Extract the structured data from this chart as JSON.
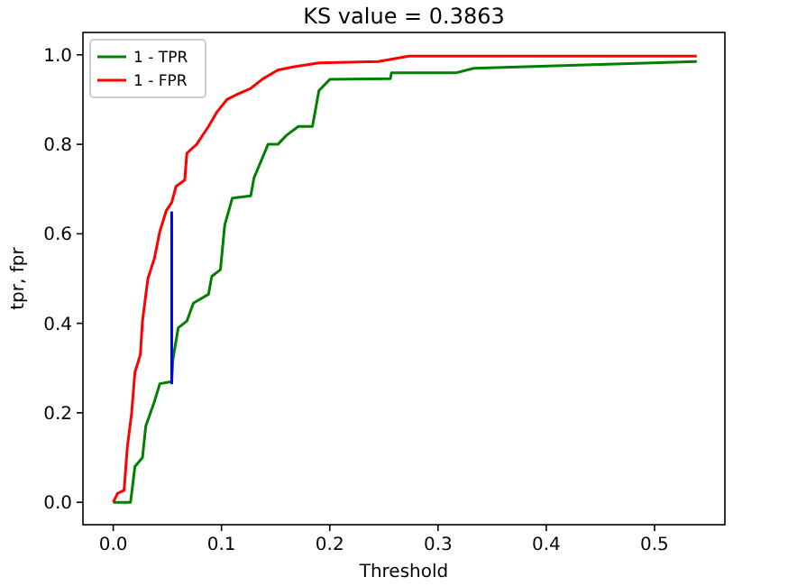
{
  "chart_data": {
    "type": "line",
    "title": "KS value = 0.3863",
    "xlabel": "Threshold",
    "ylabel": "tpr, fpr",
    "xlim": [
      -0.028,
      0.565
    ],
    "ylim": [
      -0.05,
      1.05
    ],
    "xticks": [
      {
        "value": 0,
        "label": "0.0"
      },
      {
        "value": 0.1,
        "label": "0.1"
      },
      {
        "value": 0.2,
        "label": "0.2"
      },
      {
        "value": 0.3,
        "label": "0.3"
      },
      {
        "value": 0.4,
        "label": "0.4"
      },
      {
        "value": 0.5,
        "label": "0.5"
      }
    ],
    "yticks": [
      {
        "value": 0,
        "label": "0.0"
      },
      {
        "value": 0.2,
        "label": "0.2"
      },
      {
        "value": 0.4,
        "label": "0.4"
      },
      {
        "value": 0.6,
        "label": "0.6"
      },
      {
        "value": 0.8,
        "label": "0.8"
      },
      {
        "value": 1,
        "label": "1.0"
      }
    ],
    "legend": "top left",
    "grid": false,
    "marker": "none",
    "line_style": "solid",
    "series": [
      {
        "name": "1 - TPR",
        "color": "#008000",
        "x": [
          0,
          0.016,
          0.02,
          0.027,
          0.03,
          0.038,
          0.043,
          0.054,
          0.055,
          0.06,
          0.068,
          0.074,
          0.088,
          0.091,
          0.099,
          0.103,
          0.11,
          0.127,
          0.13,
          0.143,
          0.152,
          0.16,
          0.171,
          0.184,
          0.19,
          0.2,
          0.256,
          0.257,
          0.317,
          0.333,
          0.539
        ],
        "values": [
          0,
          0,
          0.08,
          0.1,
          0.17,
          0.225,
          0.265,
          0.27,
          0.317,
          0.39,
          0.405,
          0.445,
          0.465,
          0.505,
          0.52,
          0.62,
          0.68,
          0.685,
          0.725,
          0.8,
          0.8,
          0.82,
          0.84,
          0.84,
          0.92,
          0.945,
          0.947,
          0.96,
          0.96,
          0.97,
          0.985
        ]
      },
      {
        "name": "1 - FPR",
        "color": "#ff0000",
        "x": [
          0,
          0.004,
          0.01,
          0.013,
          0.017,
          0.02,
          0.025,
          0.027,
          0.032,
          0.038,
          0.043,
          0.049,
          0.054,
          0.058,
          0.066,
          0.068,
          0.077,
          0.088,
          0.096,
          0.105,
          0.113,
          0.127,
          0.138,
          0.152,
          0.166,
          0.19,
          0.245,
          0.273,
          0.539
        ],
        "values": [
          0,
          0.02,
          0.027,
          0.123,
          0.2,
          0.29,
          0.33,
          0.405,
          0.5,
          0.545,
          0.605,
          0.652,
          0.67,
          0.706,
          0.72,
          0.78,
          0.8,
          0.84,
          0.873,
          0.9,
          0.91,
          0.925,
          0.946,
          0.966,
          0.973,
          0.982,
          0.985,
          0.997,
          0.997
        ]
      },
      {
        "color": "#0000ff",
        "x": [
          0.054,
          0.054
        ],
        "values": [
          0.264,
          0.65
        ]
      }
    ]
  }
}
